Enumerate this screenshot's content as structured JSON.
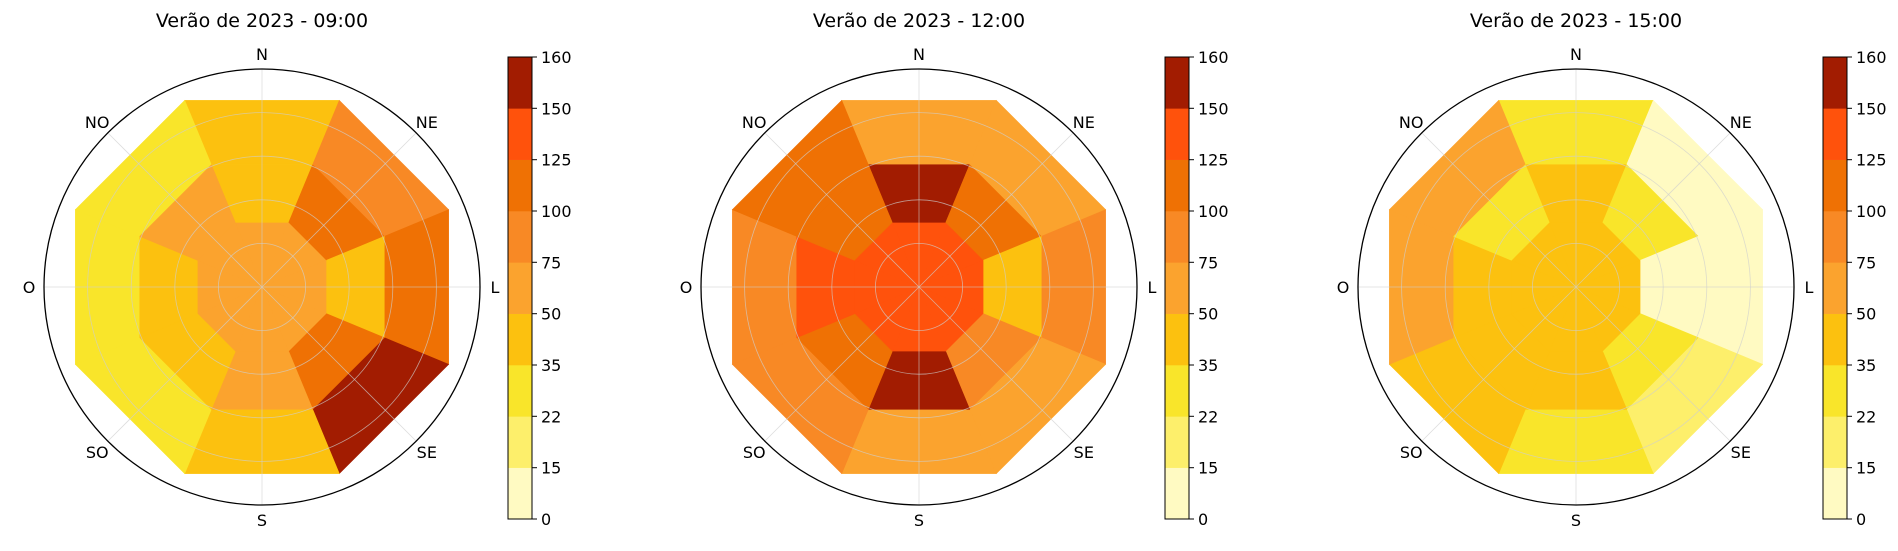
{
  "chart_data": [
    {
      "type": "polar-heatmap",
      "title": "Verão de 2023 - 09:00",
      "directions": [
        "N",
        "NE",
        "L",
        "SE",
        "S",
        "SO",
        "O",
        "NO"
      ],
      "rings": [
        "inner",
        "middle",
        "outer"
      ],
      "values": {
        "inner": [
          65,
          65,
          65,
          65,
          65,
          65,
          65,
          65
        ],
        "middle": [
          45,
          110,
          45,
          110,
          65,
          45,
          45,
          65
        ],
        "outer": [
          45,
          85,
          110,
          170,
          45,
          30,
          30,
          30
        ]
      }
    },
    {
      "type": "polar-heatmap",
      "title": "Verão de 2023 - 12:00",
      "directions": [
        "N",
        "NE",
        "L",
        "SE",
        "S",
        "SO",
        "O",
        "NO"
      ],
      "rings": [
        "inner",
        "middle",
        "outer"
      ],
      "values": {
        "inner": [
          140,
          140,
          140,
          140,
          140,
          140,
          140,
          140
        ],
        "middle": [
          170,
          110,
          45,
          85,
          170,
          110,
          140,
          110
        ],
        "outer": [
          65,
          65,
          85,
          65,
          65,
          85,
          85,
          110
        ]
      }
    },
    {
      "type": "polar-heatmap",
      "title": "Verão de 2023 - 15:00",
      "directions": [
        "N",
        "NE",
        "L",
        "SE",
        "S",
        "SO",
        "O",
        "NO"
      ],
      "rings": [
        "inner",
        "middle",
        "outer"
      ],
      "values": {
        "inner": [
          45,
          45,
          45,
          45,
          45,
          45,
          45,
          45
        ],
        "middle": [
          45,
          30,
          10,
          30,
          45,
          45,
          45,
          30
        ],
        "outer": [
          30,
          10,
          10,
          18,
          30,
          45,
          65,
          65
        ]
      }
    }
  ],
  "colorbar": {
    "ticks": [
      "160",
      "150",
      "125",
      "100",
      "75",
      "50",
      "35",
      "22",
      "15",
      "0"
    ],
    "bounds": [
      0,
      15,
      22,
      35,
      50,
      75,
      100,
      125,
      150,
      160
    ],
    "colors": [
      "#fffac2",
      "#fdef6b",
      "#f9e52a",
      "#fcc10f",
      "#fba32e",
      "#f88925",
      "#ef7104",
      "#ff520c",
      "#a21c01"
    ]
  }
}
